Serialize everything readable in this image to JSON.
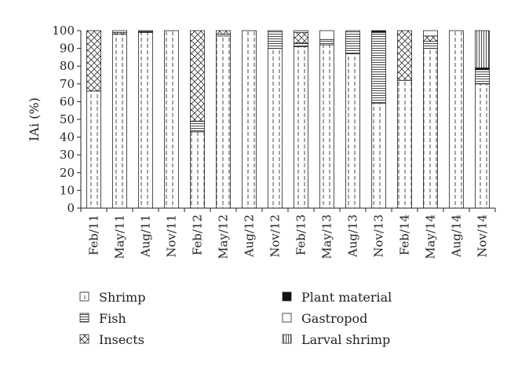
{
  "chart_data": {
    "type": "bar",
    "stacked": true,
    "ylabel": "IAi (%)",
    "ylim": [
      0,
      100
    ],
    "yticks": [
      0,
      10,
      20,
      30,
      40,
      50,
      60,
      70,
      80,
      90,
      100
    ],
    "grid": false,
    "categories": [
      "Feb/11",
      "May/11",
      "Aug/11",
      "Nov/11",
      "Feb/12",
      "May/12",
      "Aug/12",
      "Nov/12",
      "Feb/13",
      "May/13",
      "Aug/13",
      "Nov/13",
      "Feb/14",
      "May/14",
      "Aug/14",
      "Nov/14"
    ],
    "series": [
      {
        "name": "Shrimp",
        "pattern": "dashed-vertical",
        "values": [
          66,
          98,
          99,
          100,
          43,
          97,
          100,
          90,
          91,
          92,
          87,
          59,
          72,
          90,
          100,
          70
        ]
      },
      {
        "name": "Fish",
        "pattern": "horizontal-lines",
        "values": [
          0,
          0,
          0,
          0,
          6,
          1,
          0,
          10,
          2,
          3,
          13,
          40,
          0,
          4,
          0,
          8
        ]
      },
      {
        "name": "Insects",
        "pattern": "crosshatch",
        "values": [
          34,
          1,
          0,
          0,
          51,
          2,
          0,
          0,
          6,
          0,
          0,
          0,
          28,
          3,
          0,
          0
        ]
      },
      {
        "name": "Plant material",
        "pattern": "solid-black",
        "values": [
          0,
          0,
          0.5,
          0,
          0,
          0,
          0,
          0,
          0,
          0,
          0,
          1,
          0,
          0,
          0,
          1
        ]
      },
      {
        "name": "Gastropod",
        "pattern": "empty",
        "values": [
          0,
          1,
          0.5,
          0,
          0,
          0,
          0,
          0,
          1,
          5,
          0,
          0,
          0,
          3,
          0,
          0
        ]
      },
      {
        "name": "Larval shrimp",
        "pattern": "vertical-lines",
        "values": [
          0,
          0,
          0,
          0,
          0,
          0,
          0,
          0,
          0,
          0,
          0,
          0,
          0,
          0,
          0,
          21
        ]
      }
    ],
    "legend": {
      "placement": "bottom",
      "entries": [
        "Shrimp",
        "Fish",
        "Insects",
        "Plant material",
        "Gastropod",
        "Larval shrimp"
      ]
    }
  }
}
